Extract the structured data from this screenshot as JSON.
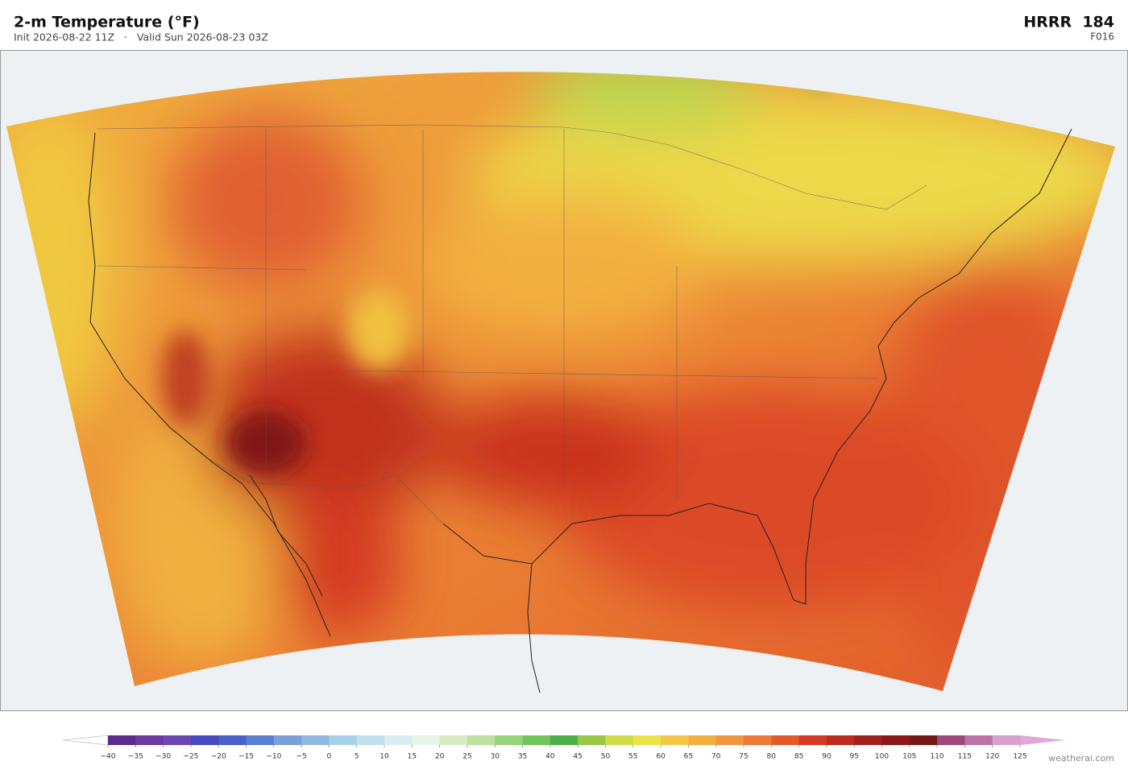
{
  "header": {
    "title": "2-m Temperature  (°F)",
    "subtitle": "Init 2026-08-22 11Z   ·   Valid Sun 2026-08-23 03Z",
    "model": "HRRR  184",
    "forecast_hour": "F016"
  },
  "colorbar": {
    "range": [
      -40,
      125
    ],
    "ticks": [
      {
        "value": -40,
        "label": "−40"
      },
      {
        "value": -35,
        "label": "−35"
      },
      {
        "value": -30,
        "label": "−30"
      },
      {
        "value": -25,
        "label": "−25"
      },
      {
        "value": -20,
        "label": "−20"
      },
      {
        "value": -15,
        "label": "−15"
      },
      {
        "value": -10,
        "label": "−10"
      },
      {
        "value": -5,
        "label": "−5"
      },
      0,
      5,
      10,
      15,
      20,
      25,
      30,
      35,
      40,
      45,
      50,
      55,
      60,
      65,
      70,
      75,
      80,
      85,
      90,
      95,
      100,
      105,
      110,
      115,
      120,
      125
    ],
    "colors": [
      "#5a2d8c",
      "#6a3a9e",
      "#6b48b0",
      "#4848c0",
      "#4a5fc8",
      "#5b80d0",
      "#78a0d8",
      "#90b8e0",
      "#a8d0e8",
      "#c0e0ee",
      "#d8eef2",
      "#e6f5e8",
      "#d6ecc0",
      "#bce0a0",
      "#98d47c",
      "#74c45c",
      "#4caf48",
      "#98c848",
      "#cddc48",
      "#ece448",
      "#f4c844",
      "#f2b040",
      "#f0963c",
      "#ec7a34",
      "#e4582c",
      "#d43a24",
      "#be2a20",
      "#a01e1c",
      "#8a1818",
      "#741818",
      "#9c4878",
      "#bc74a8",
      "#d8a0cc"
    ],
    "under_color": "#ffffff",
    "over_color": "#e0a8d8"
  },
  "footer": {
    "credit": "weatherai.com"
  }
}
